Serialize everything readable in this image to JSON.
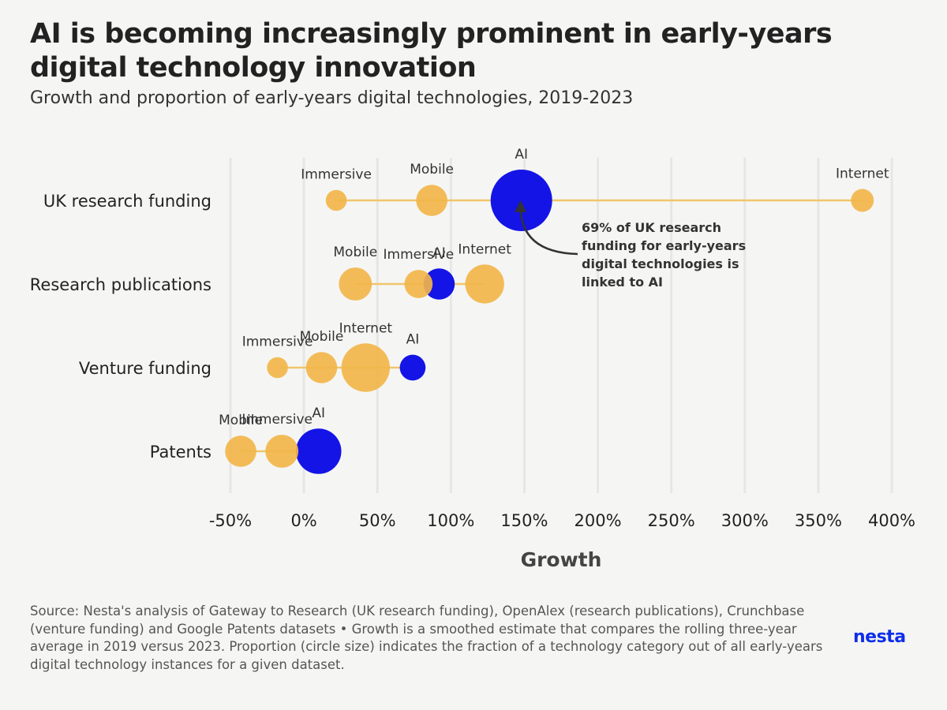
{
  "header": {
    "title": "AI is becoming increasingly prominent in early-years digital technology innovation",
    "subtitle": "Growth and proportion of early-years digital technologies, 2019-2023"
  },
  "colors": {
    "ai": "#1414e6",
    "other": "#f2b54a",
    "line": "#f2c56a",
    "grid": "#e6e7e4",
    "background": "#f5f6f4"
  },
  "chart_data": {
    "type": "scatter",
    "title": "Growth and proportion of early-years digital technologies, 2019-2023",
    "xlabel": "Growth",
    "ylabel": "",
    "xlim": [
      -50,
      400
    ],
    "x_ticks": [
      -50,
      0,
      50,
      100,
      150,
      200,
      250,
      300,
      350,
      400
    ],
    "x_tick_labels": [
      "-50%",
      "0%",
      "50%",
      "100%",
      "150%",
      "200%",
      "250%",
      "300%",
      "350%",
      "400%"
    ],
    "categories": [
      "UK research funding",
      "Research publications",
      "Venture funding",
      "Patents"
    ],
    "size_encoding": "Proportion (circle size)",
    "series": [
      {
        "category": "UK research funding",
        "points": [
          {
            "name": "Immersive",
            "growth": 22,
            "proportion": 0.02
          },
          {
            "name": "Mobile",
            "growth": 87,
            "proportion": 0.1
          },
          {
            "name": "AI",
            "growth": 148,
            "proportion": 0.69
          },
          {
            "name": "Internet",
            "growth": 380,
            "proportion": 0.03
          }
        ]
      },
      {
        "category": "Research publications",
        "points": [
          {
            "name": "Mobile",
            "growth": 35,
            "proportion": 0.12
          },
          {
            "name": "Immersive",
            "growth": 78,
            "proportion": 0.07
          },
          {
            "name": "AI",
            "growth": 92,
            "proportion": 0.1
          },
          {
            "name": "Internet",
            "growth": 123,
            "proportion": 0.2
          }
        ]
      },
      {
        "category": "Venture funding",
        "points": [
          {
            "name": "Immersive",
            "growth": -18,
            "proportion": 0.02
          },
          {
            "name": "Mobile",
            "growth": 12,
            "proportion": 0.1
          },
          {
            "name": "Internet",
            "growth": 42,
            "proportion": 0.37
          },
          {
            "name": "AI",
            "growth": 74,
            "proportion": 0.05
          }
        ]
      },
      {
        "category": "Patents",
        "points": [
          {
            "name": "Mobile",
            "growth": -43,
            "proportion": 0.1
          },
          {
            "name": "Immersive",
            "growth": -15,
            "proportion": 0.12
          },
          {
            "name": "AI",
            "growth": 10,
            "proportion": 0.31
          }
        ]
      }
    ],
    "annotation": {
      "text_lines": [
        "69% of UK research",
        "funding for early-years",
        "digital technologies is",
        "linked to AI"
      ],
      "target_category": "UK research funding",
      "target_point": "AI"
    }
  },
  "footer": {
    "source": "Source: Nesta's analysis of Gateway to Research (UK research funding), OpenAlex (research publications), Crunchbase (venture funding) and Google Patents datasets • Growth is a smoothed estimate that compares the rolling three-year average in 2019 versus 2023. Proportion (circle size) indicates the fraction of a technology category out of all early-years digital technology instances for a given dataset.",
    "logo": "nesta"
  }
}
